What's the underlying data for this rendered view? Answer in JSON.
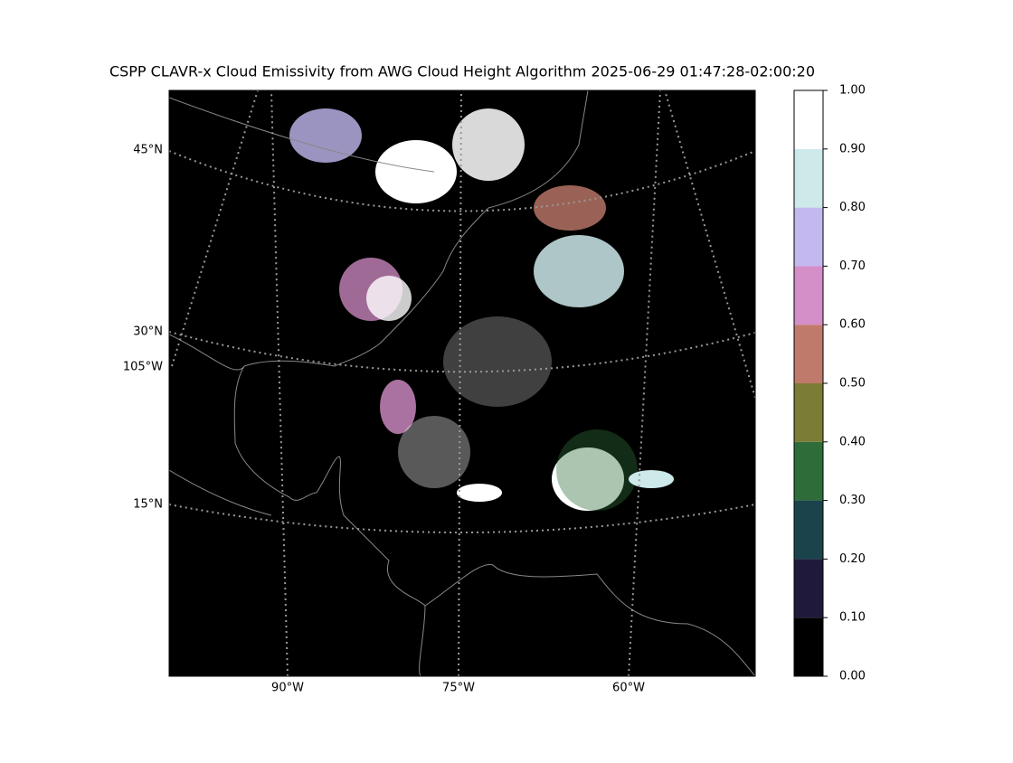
{
  "title": "CSPP CLAVR-x Cloud Emissivity from AWG Cloud Height Algorithm 2025-06-29 01:47:28-02:00:20",
  "map": {
    "lat_labels": [
      "45°N",
      "30°N",
      "15°N"
    ],
    "lon_label_left": "105°W",
    "lon_labels_bottom": [
      "90°W",
      "75°W",
      "60°W"
    ]
  },
  "colorbar": {
    "ylim": [
      0,
      1
    ],
    "yticks": [
      {
        "value": 0,
        "label": "0.00"
      },
      {
        "value": 0.1,
        "label": "0.10"
      },
      {
        "value": 0.2,
        "label": "0.20"
      },
      {
        "value": 0.3,
        "label": "0.30"
      },
      {
        "value": 0.4,
        "label": "0.40"
      },
      {
        "value": 0.5,
        "label": "0.50"
      },
      {
        "value": 0.6,
        "label": "0.60"
      },
      {
        "value": 0.7,
        "label": "0.70"
      },
      {
        "value": 0.8,
        "label": "0.80"
      },
      {
        "value": 0.9,
        "label": "0.90"
      },
      {
        "value": 1,
        "label": "1.00"
      }
    ],
    "colors": [
      "#000000",
      "#1f1a3c",
      "#1a434c",
      "#2e6d3a",
      "#7b7c35",
      "#c07a6c",
      "#d48ec8",
      "#c3b9f0",
      "#cde9ea",
      "#ffffff"
    ]
  }
}
